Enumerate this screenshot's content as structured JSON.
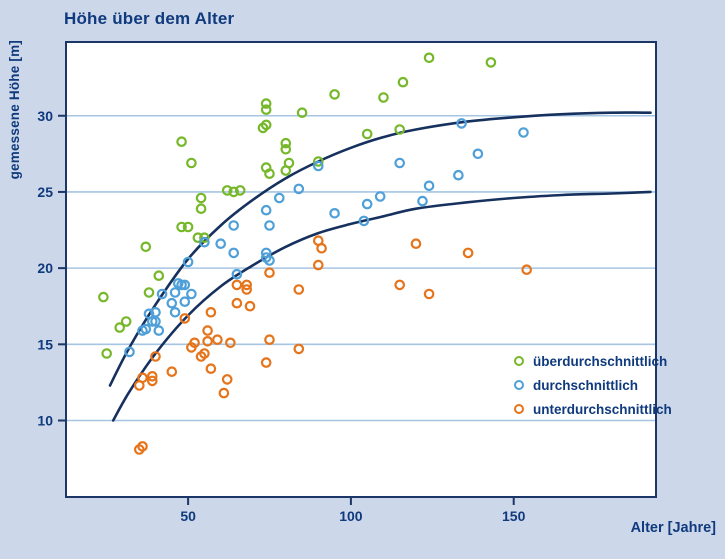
{
  "title": "Höhe über dem Alter",
  "colors": {
    "background": "#cdd7ea",
    "plot_background": "#ffffff",
    "frame": "#1c3667",
    "grid": "#a6c5e3",
    "ink": "#0f3a7d",
    "curve": "#17315f",
    "green": "#76b82a",
    "blue": "#4f9fd8",
    "orange": "#e5741a"
  },
  "chart_data": {
    "type": "scatter",
    "title": "Höhe über dem Alter",
    "xlabel": "Alter [Jahre]",
    "ylabel": "gemessene Höhe [m]",
    "xlim": [
      12.5,
      193.7
    ],
    "ylim": [
      4.98,
      34.84
    ],
    "x_ticks": [
      50,
      100,
      150
    ],
    "y_ticks": [
      10,
      15,
      20,
      25,
      30
    ],
    "grid": "horizontal-only",
    "legend_position": "inside-lower-right",
    "series": [
      {
        "name": "überdurchschnittlich",
        "color": "#76b82a",
        "points": [
          [
            25,
            14.4
          ],
          [
            24,
            18.1
          ],
          [
            29,
            16.1
          ],
          [
            31,
            16.5
          ],
          [
            37,
            21.4
          ],
          [
            38,
            18.4
          ],
          [
            41,
            19.5
          ],
          [
            48,
            28.3
          ],
          [
            51,
            26.9
          ],
          [
            48,
            22.7
          ],
          [
            50,
            22.7
          ],
          [
            53,
            22.0
          ],
          [
            55,
            22.0
          ],
          [
            54,
            24.6
          ],
          [
            54,
            23.9
          ],
          [
            62,
            25.1
          ],
          [
            64,
            25.0
          ],
          [
            66,
            25.1
          ],
          [
            73,
            29.2
          ],
          [
            74,
            30.8
          ],
          [
            74,
            30.4
          ],
          [
            74,
            29.4
          ],
          [
            74,
            26.6
          ],
          [
            75,
            26.2
          ],
          [
            80,
            28.2
          ],
          [
            80,
            27.8
          ],
          [
            81,
            26.9
          ],
          [
            80,
            26.4
          ],
          [
            85,
            30.2
          ],
          [
            90,
            27.0
          ],
          [
            95,
            31.4
          ],
          [
            105,
            28.8
          ],
          [
            110,
            31.2
          ],
          [
            115,
            29.1
          ],
          [
            116,
            32.2
          ],
          [
            124,
            33.8
          ],
          [
            143,
            33.5
          ]
        ]
      },
      {
        "name": "durchschnittlich",
        "color": "#4f9fd8",
        "points": [
          [
            32,
            14.5
          ],
          [
            36,
            15.9
          ],
          [
            37,
            16.0
          ],
          [
            38,
            17.0
          ],
          [
            40,
            17.1
          ],
          [
            39,
            16.5
          ],
          [
            40,
            16.5
          ],
          [
            41,
            15.9
          ],
          [
            42,
            18.3
          ],
          [
            45,
            17.7
          ],
          [
            46,
            17.1
          ],
          [
            46,
            18.4
          ],
          [
            47,
            19.0
          ],
          [
            48,
            18.9
          ],
          [
            49,
            18.9
          ],
          [
            49,
            17.8
          ],
          [
            50,
            20.4
          ],
          [
            51,
            18.3
          ],
          [
            55,
            21.7
          ],
          [
            60,
            21.6
          ],
          [
            64,
            22.8
          ],
          [
            64,
            21.0
          ],
          [
            65,
            19.6
          ],
          [
            74,
            21.0
          ],
          [
            74,
            20.7
          ],
          [
            75,
            20.5
          ],
          [
            74,
            23.8
          ],
          [
            75,
            22.8
          ],
          [
            78,
            24.6
          ],
          [
            84,
            25.2
          ],
          [
            90,
            26.7
          ],
          [
            95,
            23.6
          ],
          [
            104,
            23.1
          ],
          [
            105,
            24.2
          ],
          [
            109,
            24.7
          ],
          [
            115,
            26.9
          ],
          [
            122,
            24.4
          ],
          [
            124,
            25.4
          ],
          [
            133,
            26.1
          ],
          [
            134,
            29.5
          ],
          [
            139,
            27.5
          ],
          [
            153,
            28.9
          ]
        ]
      },
      {
        "name": "unterdurchschnittlich",
        "color": "#e5741a",
        "points": [
          [
            35,
            8.1
          ],
          [
            36,
            8.3
          ],
          [
            35,
            12.3
          ],
          [
            36,
            12.8
          ],
          [
            39,
            12.9
          ],
          [
            39,
            12.6
          ],
          [
            40,
            14.2
          ],
          [
            45,
            13.2
          ],
          [
            49,
            16.7
          ],
          [
            51,
            14.8
          ],
          [
            52,
            15.1
          ],
          [
            54,
            14.2
          ],
          [
            55,
            14.4
          ],
          [
            56,
            15.9
          ],
          [
            56,
            15.2
          ],
          [
            57,
            17.1
          ],
          [
            57,
            13.4
          ],
          [
            59,
            15.3
          ],
          [
            61,
            11.8
          ],
          [
            62,
            12.7
          ],
          [
            63,
            15.1
          ],
          [
            65,
            18.9
          ],
          [
            65,
            17.7
          ],
          [
            68,
            18.9
          ],
          [
            68,
            18.6
          ],
          [
            69,
            17.5
          ],
          [
            74,
            13.8
          ],
          [
            75,
            19.7
          ],
          [
            75,
            15.3
          ],
          [
            84,
            14.7
          ],
          [
            84,
            18.6
          ],
          [
            90,
            20.2
          ],
          [
            90,
            21.8
          ],
          [
            91,
            21.3
          ],
          [
            115,
            18.9
          ],
          [
            120,
            21.6
          ],
          [
            124,
            18.3
          ],
          [
            136,
            21.0
          ],
          [
            154,
            19.9
          ]
        ]
      }
    ],
    "curves": [
      {
        "name": "upper-growth-curve",
        "points": [
          [
            26,
            12.3
          ],
          [
            32,
            14.8
          ],
          [
            40,
            17.6
          ],
          [
            50,
            20.6
          ],
          [
            60,
            22.8
          ],
          [
            70,
            24.5
          ],
          [
            80,
            25.9
          ],
          [
            90,
            27.0
          ],
          [
            100,
            27.9
          ],
          [
            110,
            28.6
          ],
          [
            120,
            29.1
          ],
          [
            135,
            29.6
          ],
          [
            150,
            29.9
          ],
          [
            165,
            30.1
          ],
          [
            180,
            30.2
          ],
          [
            192,
            30.2
          ]
        ]
      },
      {
        "name": "lower-growth-curve",
        "points": [
          [
            27,
            10.0
          ],
          [
            32,
            11.9
          ],
          [
            40,
            14.4
          ],
          [
            50,
            16.9
          ],
          [
            60,
            18.8
          ],
          [
            70,
            20.2
          ],
          [
            80,
            21.4
          ],
          [
            90,
            22.3
          ],
          [
            100,
            22.9
          ],
          [
            110,
            23.4
          ],
          [
            120,
            23.9
          ],
          [
            135,
            24.3
          ],
          [
            150,
            24.6
          ],
          [
            165,
            24.8
          ],
          [
            180,
            24.9
          ],
          [
            192,
            25.0
          ]
        ]
      }
    ]
  }
}
